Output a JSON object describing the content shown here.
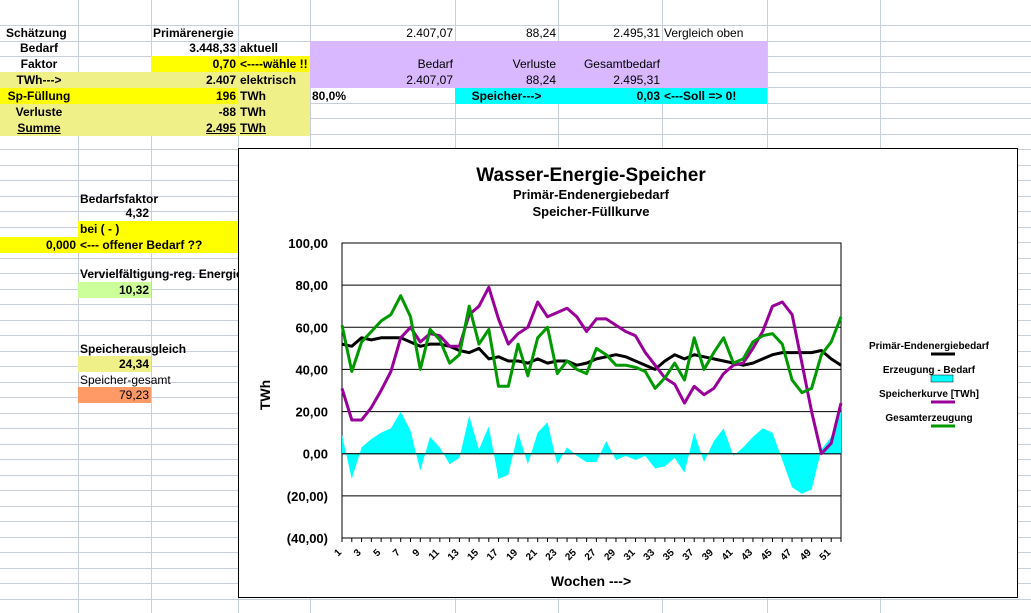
{
  "cells": {
    "schaetzung": "Schätzung",
    "bedarf": "Bedarf",
    "faktor": "Faktor",
    "twh_arrow": "TWh--->",
    "sp_fuellung": "Sp-Füllung",
    "verluste": "Verluste",
    "summe": "Summe",
    "primaerenergie": "Primärenergie",
    "val_bedarf": "3.448,33",
    "val_faktor": "0,70",
    "val_twh": "2.407",
    "val_spf": "196",
    "val_verluste": "-88",
    "val_summe": "2.495",
    "aktuell": "aktuell",
    "waehle": "<----wähle !!",
    "elektrisch": "elektrisch",
    "twh1": "TWh",
    "twh2": "TWh",
    "twh3": "TWh",
    "pct": "80,0%",
    "top_v1": "2.407,07",
    "top_v2": "88,24",
    "top_v3": "2.495,31",
    "vergleich": "Vergleich oben",
    "h_bedarf": "Bedarf",
    "h_verluste": "Verluste",
    "h_gesamt": "Gesamtbedarf",
    "r_v1": "2.407,07",
    "r_v2": "88,24",
    "r_v3": "2.495,31",
    "speicher_arrow": "Speicher--->",
    "speicher_val": "0,03",
    "soll": "<---Soll => 0!",
    "bedarfsfaktor": "Bedarfsfaktor",
    "bedarfsfaktor_val": "4,32",
    "bei": "bei ( - )",
    "offen_val": "0,000",
    "offen_label": "<--- offener Bedarf ??",
    "vervielf": "Vervielfältigung-reg. Energie",
    "vervielf_val": "10,32",
    "speicherausgleich": "Speicherausgleich",
    "speicherausgleich_val": "24,34",
    "speicher_gesamt": "Speicher-gesamt",
    "speicher_gesamt_val": "79,23"
  },
  "colors": {
    "yellow": "#ffff00",
    "light_yellow": "#f0f088",
    "lavender": "#d9b8ff",
    "cyan": "#00ffff",
    "light_green": "#ccff99",
    "salmon": "#ff9966"
  },
  "chart_data": {
    "type": "line",
    "title": "Wasser-Energie-Speicher",
    "subtitle1": "Primär-Endenergiebedarf",
    "subtitle2": "Speicher-Füllkurve",
    "xlabel": "Wochen --->",
    "ylabel": "TWh",
    "ylim": [
      -40,
      100
    ],
    "ytick_labels": [
      "100,00",
      "80,00",
      "60,00",
      "40,00",
      "20,00",
      "0,00",
      "(20,00)",
      "(40,00)"
    ],
    "x": [
      1,
      2,
      3,
      4,
      5,
      6,
      7,
      8,
      9,
      10,
      11,
      12,
      13,
      14,
      15,
      16,
      17,
      18,
      19,
      20,
      21,
      22,
      23,
      24,
      25,
      26,
      27,
      28,
      29,
      30,
      31,
      32,
      33,
      34,
      35,
      36,
      37,
      38,
      39,
      40,
      41,
      42,
      43,
      44,
      45,
      46,
      47,
      48,
      49,
      50,
      51,
      52
    ],
    "xtick_labels": [
      "1",
      "3",
      "5",
      "7",
      "9",
      "11",
      "13",
      "15",
      "17",
      "19",
      "21",
      "23",
      "25",
      "27",
      "29",
      "31",
      "33",
      "35",
      "37",
      "39",
      "41",
      "43",
      "45",
      "47",
      "49",
      "51"
    ],
    "legend_position": "right",
    "series": [
      {
        "name": "Primär-Endenergiebedarf",
        "kind": "line",
        "color": "#000000",
        "values": [
          52,
          51,
          55,
          54,
          55,
          55,
          55,
          53,
          51,
          52,
          52,
          51,
          49,
          48,
          50,
          45,
          46,
          44,
          44,
          43,
          45,
          43,
          44,
          44,
          42,
          43,
          45,
          46,
          47,
          46,
          44,
          42,
          40,
          44,
          47,
          45,
          47,
          46,
          45,
          44,
          43,
          42,
          43,
          45,
          47,
          48,
          48,
          48,
          48,
          49,
          45,
          42
        ]
      },
      {
        "name": "Erzeugung - Bedarf",
        "kind": "area",
        "color": "#00ffff",
        "values": [
          9,
          -12,
          3,
          7,
          10,
          12,
          20,
          11,
          -8,
          8,
          3,
          -5,
          -2,
          18,
          2,
          13,
          -12,
          -10,
          10,
          -5,
          10,
          15,
          -5,
          3,
          -1,
          -4,
          -4,
          6,
          -3,
          -1,
          -3,
          -1,
          -7,
          -6,
          -2,
          -9,
          10,
          -4,
          6,
          12,
          -1,
          3,
          8,
          12,
          10,
          -3,
          -16,
          -19,
          -17,
          2,
          8,
          20
        ]
      },
      {
        "name": "Speicherkurve [TWh]",
        "kind": "line",
        "color": "#990099",
        "values": [
          31,
          16,
          16,
          22,
          30,
          39,
          55,
          60,
          53,
          57,
          56,
          51,
          51,
          66,
          70,
          79,
          64,
          52,
          57,
          60,
          72,
          65,
          67,
          69,
          65,
          58,
          64,
          64,
          61,
          58,
          56,
          48,
          42,
          36,
          33,
          24,
          32,
          28,
          31,
          38,
          42,
          43,
          50,
          58,
          70,
          72,
          66,
          43,
          20,
          0,
          5,
          24
        ]
      },
      {
        "name": "Gesamterzeugung",
        "kind": "line",
        "color": "#009900",
        "values": [
          61,
          39,
          53,
          58,
          63,
          66,
          75,
          65,
          40,
          59,
          54,
          43,
          47,
          70,
          52,
          59,
          32,
          32,
          52,
          37,
          55,
          60,
          38,
          44,
          40,
          38,
          50,
          47,
          42,
          42,
          41,
          39,
          31,
          36,
          43,
          35,
          55,
          40,
          48,
          55,
          43,
          45,
          53,
          56,
          57,
          52,
          35,
          29,
          31,
          47,
          53,
          65
        ]
      }
    ]
  }
}
